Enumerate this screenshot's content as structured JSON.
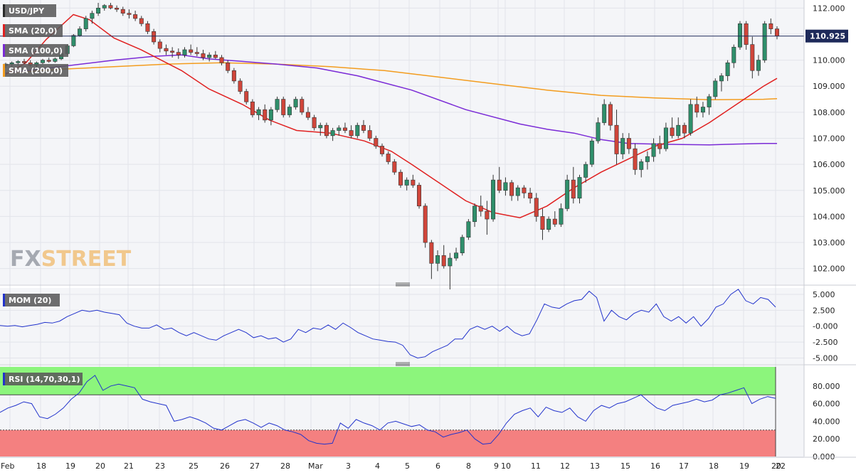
{
  "chart_data": [
    {
      "type": "candlestick",
      "instrument": "USD/JPY",
      "price_label": "110.925",
      "ylim": [
        101.5,
        112.2
      ],
      "y_ticks": [
        "112.000",
        "111.000",
        "110.000",
        "109.000",
        "108.000",
        "107.000",
        "106.000",
        "105.000",
        "104.000",
        "103.000",
        "102.000"
      ],
      "x_ticks": [
        "Feb",
        "18",
        "19",
        "20",
        "21",
        "23",
        "25",
        "26",
        "27",
        "28",
        "Mar",
        "3",
        "4",
        "5",
        "6",
        "8",
        "9",
        "10",
        "11",
        "12",
        "13",
        "15",
        "16",
        "17",
        "18",
        "19",
        "20",
        "22"
      ],
      "legend": [
        {
          "name": "SMA (20,0)",
          "color": "#e02020"
        },
        {
          "name": "SMA (100,0)",
          "color": "#7a2ad6"
        },
        {
          "name": "SMA (200,0)",
          "color": "#f39c1e"
        }
      ],
      "candles": [
        [
          109.8,
          109.9,
          109.7,
          109.85
        ],
        [
          109.85,
          109.95,
          109.75,
          109.9
        ],
        [
          109.9,
          110.0,
          109.8,
          109.95
        ],
        [
          109.95,
          110.05,
          109.85,
          109.9
        ],
        [
          109.9,
          110.0,
          109.75,
          109.8
        ],
        [
          109.8,
          109.95,
          109.7,
          109.9
        ],
        [
          109.9,
          110.05,
          109.85,
          110.0
        ],
        [
          110.0,
          110.1,
          109.9,
          109.95
        ],
        [
          109.95,
          110.1,
          109.9,
          110.05
        ],
        [
          110.05,
          110.3,
          110.0,
          110.25
        ],
        [
          110.25,
          110.6,
          110.2,
          110.55
        ],
        [
          110.55,
          111.0,
          110.5,
          110.95
        ],
        [
          110.95,
          111.3,
          110.9,
          111.2
        ],
        [
          111.2,
          111.7,
          111.1,
          111.6
        ],
        [
          111.6,
          111.9,
          111.4,
          111.8
        ],
        [
          111.8,
          112.2,
          111.7,
          112.0
        ],
        [
          112.0,
          112.15,
          111.9,
          112.1
        ],
        [
          112.1,
          112.2,
          111.95,
          112.0
        ],
        [
          112.0,
          112.1,
          111.85,
          111.95
        ],
        [
          111.95,
          112.05,
          111.7,
          111.8
        ],
        [
          111.8,
          111.95,
          111.6,
          111.75
        ],
        [
          111.75,
          111.9,
          111.5,
          111.6
        ],
        [
          111.6,
          111.7,
          111.3,
          111.4
        ],
        [
          111.4,
          111.5,
          111.0,
          111.1
        ],
        [
          111.1,
          111.2,
          110.6,
          110.7
        ],
        [
          110.7,
          110.8,
          110.3,
          110.45
        ],
        [
          110.45,
          110.6,
          110.2,
          110.35
        ],
        [
          110.35,
          110.5,
          110.1,
          110.3
        ],
        [
          110.3,
          110.45,
          110.05,
          110.2
        ],
        [
          110.2,
          110.5,
          110.1,
          110.4
        ],
        [
          110.4,
          110.6,
          110.2,
          110.3
        ],
        [
          110.3,
          110.5,
          110.15,
          110.25
        ],
        [
          110.25,
          110.4,
          110.0,
          110.1
        ],
        [
          110.1,
          110.3,
          109.95,
          110.2
        ],
        [
          110.2,
          110.35,
          110.05,
          110.1
        ],
        [
          110.1,
          110.2,
          109.8,
          109.9
        ],
        [
          109.9,
          110.0,
          109.5,
          109.6
        ],
        [
          109.6,
          109.7,
          109.1,
          109.2
        ],
        [
          109.2,
          109.3,
          108.7,
          108.8
        ],
        [
          108.8,
          108.9,
          108.3,
          108.4
        ],
        [
          108.4,
          108.5,
          107.8,
          107.9
        ],
        [
          107.9,
          108.2,
          107.7,
          108.1
        ],
        [
          108.1,
          108.3,
          107.6,
          107.7
        ],
        [
          107.7,
          108.2,
          107.5,
          108.1
        ],
        [
          108.1,
          108.6,
          108.0,
          108.5
        ],
        [
          108.5,
          108.6,
          107.8,
          107.9
        ],
        [
          107.9,
          108.3,
          107.8,
          108.2
        ],
        [
          108.2,
          108.6,
          108.1,
          108.5
        ],
        [
          108.5,
          108.6,
          107.9,
          108.0
        ],
        [
          108.0,
          108.2,
          107.7,
          107.8
        ],
        [
          107.8,
          107.9,
          107.3,
          107.4
        ],
        [
          107.4,
          107.6,
          107.1,
          107.5
        ],
        [
          107.5,
          107.6,
          107.0,
          107.1
        ],
        [
          107.1,
          107.4,
          106.9,
          107.3
        ],
        [
          107.3,
          107.5,
          107.1,
          107.4
        ],
        [
          107.4,
          107.6,
          107.2,
          107.3
        ],
        [
          107.3,
          107.5,
          107.0,
          107.1
        ],
        [
          107.1,
          107.6,
          107.0,
          107.5
        ],
        [
          107.5,
          107.7,
          107.2,
          107.3
        ],
        [
          107.3,
          107.5,
          106.9,
          107.0
        ],
        [
          107.0,
          107.1,
          106.6,
          106.7
        ],
        [
          106.7,
          106.8,
          106.3,
          106.4
        ],
        [
          106.4,
          106.5,
          106.0,
          106.1
        ],
        [
          106.1,
          106.2,
          105.6,
          105.7
        ],
        [
          105.7,
          105.8,
          105.1,
          105.2
        ],
        [
          105.2,
          105.5,
          105.0,
          105.4
        ],
        [
          105.4,
          105.6,
          105.1,
          105.2
        ],
        [
          105.2,
          105.3,
          104.3,
          104.4
        ],
        [
          104.4,
          104.5,
          102.8,
          103.0
        ],
        [
          103.0,
          103.1,
          101.6,
          102.2
        ],
        [
          102.2,
          102.7,
          101.9,
          102.5
        ],
        [
          102.5,
          102.9,
          102.0,
          102.1
        ],
        [
          102.1,
          102.6,
          101.2,
          102.4
        ],
        [
          102.4,
          102.8,
          102.3,
          102.6
        ],
        [
          102.6,
          103.3,
          102.5,
          103.2
        ],
        [
          103.2,
          103.9,
          103.1,
          103.8
        ],
        [
          103.8,
          104.5,
          103.6,
          104.4
        ],
        [
          104.4,
          104.8,
          104.0,
          104.2
        ],
        [
          104.2,
          104.6,
          103.3,
          103.9
        ],
        [
          103.9,
          105.6,
          103.8,
          105.4
        ],
        [
          105.4,
          105.9,
          104.9,
          105.0
        ],
        [
          105.0,
          105.5,
          104.8,
          105.3
        ],
        [
          105.3,
          105.4,
          104.6,
          104.8
        ],
        [
          104.8,
          105.2,
          104.6,
          105.1
        ],
        [
          105.1,
          105.2,
          104.7,
          104.9
        ],
        [
          104.9,
          105.1,
          104.5,
          104.7
        ],
        [
          104.7,
          104.9,
          103.8,
          104.0
        ],
        [
          104.0,
          104.3,
          103.1,
          103.5
        ],
        [
          103.5,
          104.0,
          103.4,
          103.9
        ],
        [
          103.9,
          104.2,
          103.6,
          103.7
        ],
        [
          103.7,
          104.5,
          103.6,
          104.3
        ],
        [
          104.3,
          105.6,
          104.2,
          105.4
        ],
        [
          105.4,
          105.9,
          104.5,
          104.7
        ],
        [
          104.7,
          105.6,
          104.5,
          105.5
        ],
        [
          105.5,
          106.1,
          105.3,
          106.0
        ],
        [
          106.0,
          107.0,
          105.9,
          106.9
        ],
        [
          106.9,
          107.8,
          106.8,
          107.6
        ],
        [
          107.6,
          108.5,
          107.5,
          108.3
        ],
        [
          108.3,
          108.4,
          107.3,
          107.5
        ],
        [
          107.5,
          108.1,
          106.0,
          106.4
        ],
        [
          106.4,
          107.2,
          106.2,
          107.0
        ],
        [
          107.0,
          107.2,
          106.4,
          106.6
        ],
        [
          106.6,
          106.8,
          105.6,
          105.8
        ],
        [
          105.8,
          106.2,
          105.5,
          106.1
        ],
        [
          106.1,
          106.5,
          105.8,
          106.3
        ],
        [
          106.3,
          107.0,
          106.1,
          106.8
        ],
        [
          106.8,
          107.1,
          106.4,
          106.6
        ],
        [
          106.6,
          107.6,
          106.5,
          107.4
        ],
        [
          107.4,
          107.8,
          107.0,
          107.1
        ],
        [
          107.1,
          107.8,
          107.0,
          107.5
        ],
        [
          107.5,
          107.6,
          107.0,
          107.2
        ],
        [
          107.2,
          108.5,
          107.1,
          108.3
        ],
        [
          108.3,
          108.6,
          107.8,
          108.0
        ],
        [
          108.0,
          108.4,
          107.8,
          108.2
        ],
        [
          108.2,
          108.7,
          107.9,
          108.6
        ],
        [
          108.6,
          109.3,
          108.5,
          109.2
        ],
        [
          109.2,
          109.5,
          108.8,
          109.4
        ],
        [
          109.4,
          110.0,
          109.2,
          109.9
        ],
        [
          109.9,
          110.6,
          109.7,
          110.5
        ],
        [
          110.5,
          111.5,
          110.4,
          111.4
        ],
        [
          111.4,
          111.5,
          110.4,
          110.6
        ],
        [
          110.6,
          110.9,
          109.3,
          109.6
        ],
        [
          109.6,
          110.2,
          109.4,
          110.0
        ],
        [
          110.0,
          111.5,
          109.9,
          111.4
        ],
        [
          111.4,
          111.6,
          111.0,
          111.2
        ],
        [
          111.2,
          111.3,
          110.8,
          110.925
        ]
      ],
      "sma20": [
        [
          0,
          109.45
        ],
        [
          15,
          109.9
        ],
        [
          30,
          110.8
        ],
        [
          50,
          111.75
        ],
        [
          62,
          111.55
        ],
        [
          80,
          110.85
        ],
        [
          100,
          110.4
        ],
        [
          130,
          109.6
        ],
        [
          150,
          108.9
        ],
        [
          175,
          108.3
        ],
        [
          195,
          107.7
        ],
        [
          215,
          107.3
        ],
        [
          240,
          107.2
        ],
        [
          265,
          106.9
        ],
        [
          285,
          106.5
        ],
        [
          300,
          106.0
        ],
        [
          320,
          105.3
        ],
        [
          340,
          104.6
        ],
        [
          360,
          104.15
        ],
        [
          380,
          103.95
        ],
        [
          400,
          104.4
        ],
        [
          420,
          105.1
        ],
        [
          440,
          105.7
        ],
        [
          460,
          106.2
        ],
        [
          480,
          106.7
        ],
        [
          500,
          107.0
        ],
        [
          520,
          107.6
        ],
        [
          540,
          108.3
        ],
        [
          560,
          109.0
        ],
        [
          570,
          109.3
        ]
      ],
      "sma100": [
        [
          0,
          109.5
        ],
        [
          40,
          109.75
        ],
        [
          80,
          110.0
        ],
        [
          110,
          110.15
        ],
        [
          130,
          110.2
        ],
        [
          150,
          110.05
        ],
        [
          175,
          109.95
        ],
        [
          200,
          109.85
        ],
        [
          230,
          109.7
        ],
        [
          260,
          109.4
        ],
        [
          300,
          108.85
        ],
        [
          340,
          108.1
        ],
        [
          380,
          107.55
        ],
        [
          400,
          107.35
        ],
        [
          420,
          107.2
        ],
        [
          440,
          106.95
        ],
        [
          460,
          106.8
        ],
        [
          480,
          106.78
        ],
        [
          500,
          106.76
        ],
        [
          520,
          106.75
        ],
        [
          540,
          106.78
        ],
        [
          560,
          106.8
        ],
        [
          570,
          106.8
        ]
      ],
      "sma200": [
        [
          0,
          109.5
        ],
        [
          40,
          109.65
        ],
        [
          80,
          109.75
        ],
        [
          120,
          109.85
        ],
        [
          160,
          109.9
        ],
        [
          200,
          109.85
        ],
        [
          240,
          109.75
        ],
        [
          280,
          109.6
        ],
        [
          320,
          109.35
        ],
        [
          360,
          109.1
        ],
        [
          400,
          108.85
        ],
        [
          440,
          108.65
        ],
        [
          480,
          108.55
        ],
        [
          520,
          108.48
        ],
        [
          560,
          108.5
        ],
        [
          570,
          108.52
        ]
      ]
    },
    {
      "type": "line",
      "name": "MOM (20)",
      "y_ticks": [
        "5.000",
        "2.500",
        "-0.000",
        "-2.500",
        "-5.000"
      ],
      "ylim": [
        -5.0,
        5.0
      ],
      "values": [
        0.1,
        0.0,
        0.1,
        -0.1,
        0.1,
        0.3,
        0.6,
        0.5,
        0.8,
        1.5,
        2.0,
        2.5,
        2.3,
        2.5,
        2.2,
        2.0,
        1.8,
        0.5,
        0.0,
        -0.3,
        -0.3,
        0.2,
        -0.5,
        -0.3,
        -1.0,
        -1.5,
        -1.0,
        -1.5,
        -2.0,
        -2.2,
        -1.5,
        -1.0,
        -0.5,
        -1.0,
        -1.8,
        -1.5,
        -2.0,
        -1.8,
        -2.5,
        -2.0,
        -0.5,
        -1.0,
        -0.3,
        -0.5,
        0.2,
        -0.5,
        0.5,
        -0.2,
        -1.0,
        -1.5,
        -2.0,
        -2.2,
        -2.4,
        -2.5,
        -3.0,
        -4.5,
        -5.0,
        -4.8,
        -4.0,
        -3.5,
        -3.0,
        -2.0,
        -2.0,
        -0.5,
        0.0,
        -0.5,
        0.0,
        -0.8,
        0.0,
        -1.0,
        -1.5,
        -1.2,
        1.0,
        3.5,
        3.0,
        2.8,
        3.5,
        4.0,
        4.2,
        5.5,
        4.5,
        0.8,
        2.5,
        1.5,
        1.0,
        2.0,
        2.5,
        2.2,
        3.5,
        1.5,
        0.8,
        1.5,
        0.5,
        1.5,
        0.0,
        1.2,
        3.0,
        3.5,
        5.0,
        5.8,
        4.0,
        3.5,
        4.5,
        4.2,
        3.0
      ],
      "series_color": "#2233cc"
    },
    {
      "type": "line",
      "name": "RSI (14,70,30,1)",
      "y_ticks": [
        "80.000",
        "60.000",
        "40.000",
        "20.000",
        "0.000"
      ],
      "ylim": [
        0,
        100
      ],
      "overbought": 70,
      "oversold": 30,
      "values": [
        50,
        55,
        58,
        62,
        60,
        45,
        43,
        48,
        55,
        65,
        72,
        85,
        92,
        75,
        80,
        82,
        80,
        78,
        65,
        62,
        60,
        58,
        40,
        42,
        45,
        42,
        38,
        32,
        30,
        35,
        40,
        42,
        38,
        33,
        38,
        35,
        30,
        28,
        25,
        18,
        15,
        14,
        15,
        38,
        32,
        42,
        38,
        35,
        30,
        38,
        40,
        37,
        34,
        36,
        30,
        28,
        22,
        25,
        27,
        30,
        20,
        14,
        15,
        25,
        38,
        48,
        52,
        55,
        45,
        56,
        52,
        50,
        55,
        45,
        40,
        52,
        58,
        55,
        60,
        62,
        66,
        70,
        62,
        55,
        52,
        58,
        60,
        62,
        65,
        62,
        64,
        70,
        72,
        75,
        78,
        60,
        65,
        68,
        66
      ],
      "series_color": "#2233cc"
    }
  ],
  "logo": {
    "fx": "FX",
    "street": "STREET"
  }
}
